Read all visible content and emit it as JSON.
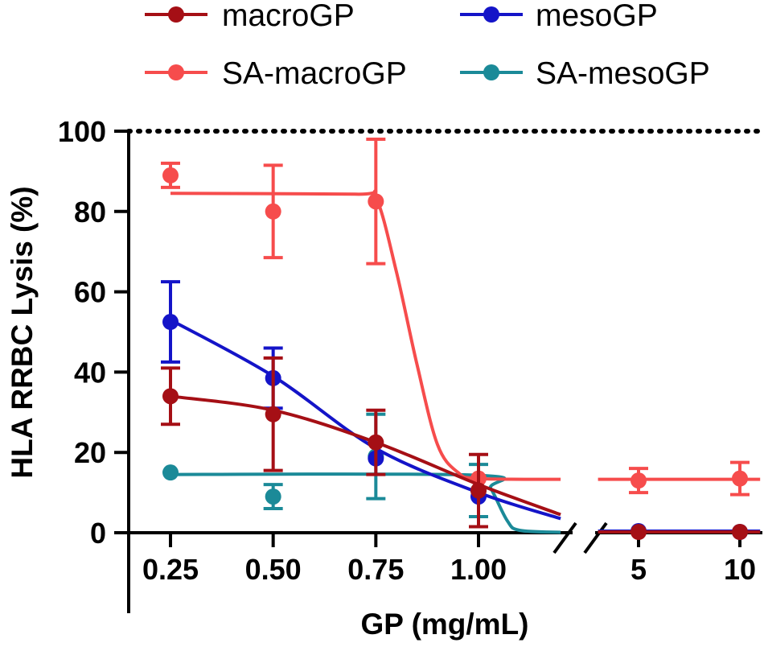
{
  "chart_data": {
    "type": "scatter",
    "title": "",
    "xlabel": "GP (mg/mL)",
    "ylabel": "HLA RRBC Lysis (%)",
    "ylim": [
      0,
      100
    ],
    "yticks": [
      "0",
      "20",
      "40",
      "60",
      "80",
      "100"
    ],
    "x_segments": [
      {
        "range": [
          0.2,
          1.2
        ],
        "ticks": [
          0.25,
          0.5,
          0.75,
          1.0
        ],
        "tick_labels": [
          "0.25",
          "0.50",
          "0.75",
          "1.00"
        ]
      },
      {
        "range": [
          3.0,
          11.0
        ],
        "ticks": [
          5,
          10
        ],
        "tick_labels": [
          "5",
          "10"
        ]
      }
    ],
    "reference_line": {
      "y": 100,
      "style": "dotted"
    },
    "legend_position": "top",
    "series": [
      {
        "name": "macroGP",
        "color": "#a50f15",
        "x": [
          0.25,
          0.5,
          0.75,
          1.0,
          5,
          10
        ],
        "y": [
          34,
          29.5,
          22.5,
          10.5,
          0.2,
          0.2
        ],
        "err": [
          7,
          14,
          8,
          9,
          0,
          0
        ],
        "fit_seg1": [
          [
            0.25,
            34
          ],
          [
            0.5,
            30.5
          ],
          [
            0.75,
            22.5
          ],
          [
            1.0,
            12
          ],
          [
            1.2,
            4.5
          ]
        ],
        "fit_seg2": [
          [
            3.0,
            0.2
          ],
          [
            11.0,
            0.2
          ]
        ]
      },
      {
        "name": "mesoGP",
        "color": "#1414c8",
        "x": [
          0.25,
          0.5,
          0.75,
          1.0,
          5,
          10
        ],
        "y": [
          52.5,
          38.5,
          18.5,
          9,
          0.4,
          0.2
        ],
        "err": [
          10,
          7.5,
          0,
          0,
          0,
          0
        ],
        "fit_seg1": [
          [
            0.25,
            53
          ],
          [
            0.5,
            39
          ],
          [
            0.75,
            21
          ],
          [
            1.0,
            10
          ],
          [
            1.2,
            3.5
          ]
        ],
        "fit_seg2": [
          [
            3.0,
            0.4
          ],
          [
            11.0,
            0.4
          ]
        ]
      },
      {
        "name": "SA-macroGP",
        "color": "#f64c4c",
        "x": [
          0.25,
          0.5,
          0.75,
          1.0,
          5,
          10
        ],
        "y": [
          89,
          80,
          82.5,
          13.5,
          13,
          13.5
        ],
        "err": [
          3,
          11.5,
          15.5,
          0,
          3,
          4
        ],
        "fit_seg1": [
          [
            0.25,
            84.5
          ],
          [
            0.7,
            84.3
          ],
          [
            0.75,
            83.5
          ],
          [
            0.8,
            65
          ],
          [
            0.85,
            42
          ],
          [
            0.9,
            22
          ],
          [
            0.95,
            15
          ],
          [
            1.0,
            13.5
          ],
          [
            1.2,
            13.3
          ]
        ],
        "fit_seg2": [
          [
            3.0,
            13.3
          ],
          [
            11.0,
            13.3
          ]
        ]
      },
      {
        "name": "SA-mesoGP",
        "color": "#1b8a98",
        "x": [
          0.25,
          0.5,
          0.75,
          1.0
        ],
        "y": [
          15,
          9,
          19,
          10.5
        ],
        "err": [
          0,
          3,
          10.5,
          6.5
        ],
        "fit_seg1": [
          [
            0.25,
            14.5
          ],
          [
            1.0,
            14.3
          ],
          [
            1.03,
            11
          ],
          [
            1.07,
            3
          ],
          [
            1.1,
            0.6
          ],
          [
            1.2,
            0.1
          ]
        ],
        "fit_seg2": []
      }
    ]
  }
}
